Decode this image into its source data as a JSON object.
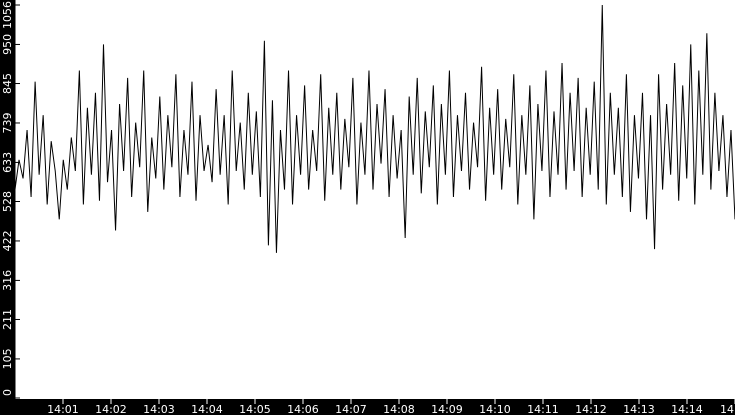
{
  "chart_data": {
    "type": "line",
    "title": "",
    "xlabel": "",
    "ylabel": "",
    "x_range": [
      "14:00",
      "14:15"
    ],
    "ylim": [
      0,
      1056
    ],
    "yticks": [
      "0",
      "105",
      "211",
      "316",
      "422",
      "528",
      "633",
      "739",
      "845",
      "950",
      "1056"
    ],
    "xticks": [
      "14:01",
      "14:02",
      "14:03",
      "14:04",
      "14:05",
      "14:06",
      "14:07",
      "14:08",
      "14:09",
      "14:10",
      "14:11",
      "14:12",
      "14:13",
      "14:14",
      "14"
    ],
    "grid": false,
    "line_color": "#000000",
    "axis_band_color": "#000000",
    "values": [
      560,
      640,
      590,
      720,
      540,
      850,
      600,
      760,
      520,
      690,
      610,
      480,
      640,
      560,
      700,
      610,
      880,
      520,
      780,
      600,
      820,
      530,
      950,
      580,
      720,
      450,
      790,
      610,
      860,
      540,
      740,
      620,
      880,
      500,
      700,
      590,
      810,
      560,
      760,
      620,
      870,
      540,
      720,
      600,
      850,
      530,
      760,
      610,
      680,
      580,
      830,
      600,
      760,
      520,
      880,
      610,
      740,
      560,
      820,
      600,
      770,
      540,
      960,
      410,
      800,
      390,
      720,
      560,
      880,
      520,
      760,
      600,
      840,
      560,
      720,
      610,
      870,
      530,
      780,
      600,
      820,
      560,
      750,
      620,
      860,
      520,
      740,
      600,
      880,
      560,
      790,
      630,
      830,
      540,
      760,
      590,
      720,
      430,
      810,
      600,
      860,
      550,
      770,
      620,
      840,
      520,
      790,
      600,
      880,
      540,
      760,
      610,
      820,
      560,
      740,
      620,
      890,
      530,
      780,
      600,
      830,
      560,
      750,
      620,
      870,
      520,
      760,
      600,
      840,
      480,
      790,
      610,
      880,
      540,
      770,
      600,
      900,
      560,
      820,
      610,
      860,
      540,
      780,
      600,
      850,
      560,
      1056,
      520,
      820,
      600,
      780,
      540,
      870,
      500,
      760,
      590,
      820,
      480,
      760,
      400,
      870,
      560,
      790,
      600,
      900,
      530,
      840,
      590,
      950,
      520,
      880,
      600,
      980,
      560,
      820,
      610,
      760,
      540,
      720,
      480
    ]
  }
}
